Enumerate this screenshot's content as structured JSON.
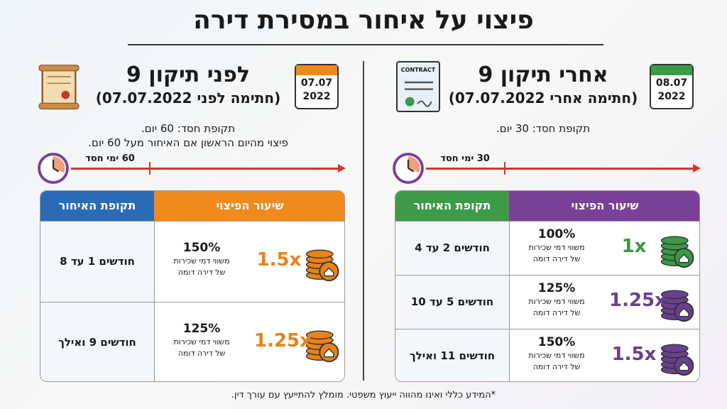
{
  "title": "פיצוי על איחור במסירת דירה",
  "panels": [
    {
      "calendar": {
        "day": "08.07",
        "year": "2022",
        "color": "#3d9b48"
      },
      "icon_label": "CONTRACT",
      "heading": "אחרי תיקון 9",
      "subheading": "(חתימה אחרי 07.07.2022)",
      "notes": [
        "תקופת חסד: 30 יום."
      ],
      "timeline_label": "30 ימי חסד",
      "table": {
        "headers": [
          {
            "text": "שיעור הפיצוי",
            "color": "#7a3f96"
          },
          {
            "text": "תקופת האיחור",
            "color": "#3d9b48"
          }
        ],
        "rows": [
          {
            "multiplier": "1x",
            "percent": "100%",
            "description": [
              "משווי דמי שכירות",
              "של דירה דומה"
            ],
            "period": "חודשים 2 עד 4",
            "color": "#3a9a45"
          },
          {
            "multiplier": "1.25x",
            "percent": "125%",
            "description": [
              "משווי דמי שכירות",
              "של דירה דומה"
            ],
            "period": "חודשים 5 עד 10",
            "color": "#6b3f8f"
          },
          {
            "multiplier": "1.5x",
            "percent": "150%",
            "description": [
              "משווי דמי שכירות",
              "של דירה דומה"
            ],
            "period": "חודשים 11 ואילך",
            "color": "#6b3f8f"
          }
        ]
      }
    },
    {
      "calendar": {
        "day": "07.07",
        "year": "2022",
        "color": "#f08a1d"
      },
      "heading": "לפני תיקון 9",
      "subheading": "(חתימה לפני 07.07.2022)",
      "notes": [
        "תקופת חסד: 60 יום.",
        "פיצוי מהיום הראשון אם האיחור מעל 60 יום."
      ],
      "timeline_label": "60 ימי חסד",
      "table": {
        "headers": [
          {
            "text": "שיעור הפיצוי",
            "color": "#f08a1d"
          },
          {
            "text": "תקופת האיחור",
            "color": "#2a6bb5"
          }
        ],
        "rows": [
          {
            "multiplier": "1.5x",
            "percent": "150%",
            "description": [
              "משווי דמי שכירות",
              "של דירה דומה"
            ],
            "period": "חודשים 1 עד 8",
            "color": "#e8831a"
          },
          {
            "multiplier": "1.25x",
            "percent": "125%",
            "description": [
              "משווי דמי שכירות",
              "של דירה דומה"
            ],
            "period": "חודשים 9 ואילך",
            "color": "#e8831a"
          }
        ]
      }
    }
  ],
  "footer": "*המידע כללי ואינו מהווה ייעוץ משפטי. מומלץ להתייעץ עם עורך דין."
}
